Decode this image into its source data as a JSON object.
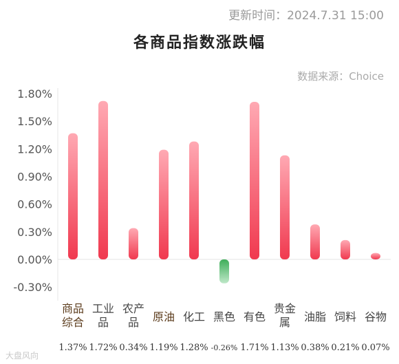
{
  "header": {
    "update_time": "更新时间：2024.7.31 15:00",
    "title": "各商品指数涨跌幅",
    "source": "数据来源：Choice"
  },
  "watermark": "大盘风向",
  "colors": {
    "positive": "#f0394f",
    "positive_light": "#ffa9b3",
    "negative": "#3fae5a",
    "negative_light": "#bfe8c9",
    "label_dark": "#5a3a1a",
    "label_gray": "#444444"
  },
  "chart_data": {
    "type": "bar",
    "title": "各商品指数涨跌幅",
    "categories": [
      "商品综合",
      "工业品",
      "农产品",
      "原油",
      "化工",
      "黑色",
      "有色",
      "贵金属",
      "油脂",
      "饲料",
      "谷物"
    ],
    "category_lines": [
      [
        "商品",
        "综合"
      ],
      [
        "工业",
        "品"
      ],
      [
        "农产",
        "品"
      ],
      [
        "原油"
      ],
      [
        "化工"
      ],
      [
        "黑色"
      ],
      [
        "有色"
      ],
      [
        "贵金",
        "属"
      ],
      [
        "油脂"
      ],
      [
        "饲料"
      ],
      [
        "谷物"
      ]
    ],
    "category_dark": [
      true,
      false,
      false,
      true,
      false,
      false,
      false,
      false,
      false,
      false,
      false
    ],
    "values": [
      1.37,
      1.72,
      0.34,
      1.19,
      1.28,
      -0.26,
      1.71,
      1.13,
      0.38,
      0.21,
      0.07
    ],
    "value_labels": [
      "1.37%",
      "1.72%",
      "0.34%",
      "1.19%",
      "1.28%",
      "-0.26%",
      "1.71%",
      "1.13%",
      "0.38%",
      "0.21%",
      "0.07%"
    ],
    "yticks": [
      -0.3,
      0.0,
      0.3,
      0.6,
      0.9,
      1.2,
      1.5,
      1.8
    ],
    "ytick_labels": [
      "-0.30%",
      "0.00%",
      "0.30%",
      "0.60%",
      "0.90%",
      "1.20%",
      "1.50%",
      "1.80%"
    ],
    "ylim": [
      -0.3,
      1.8
    ]
  }
}
